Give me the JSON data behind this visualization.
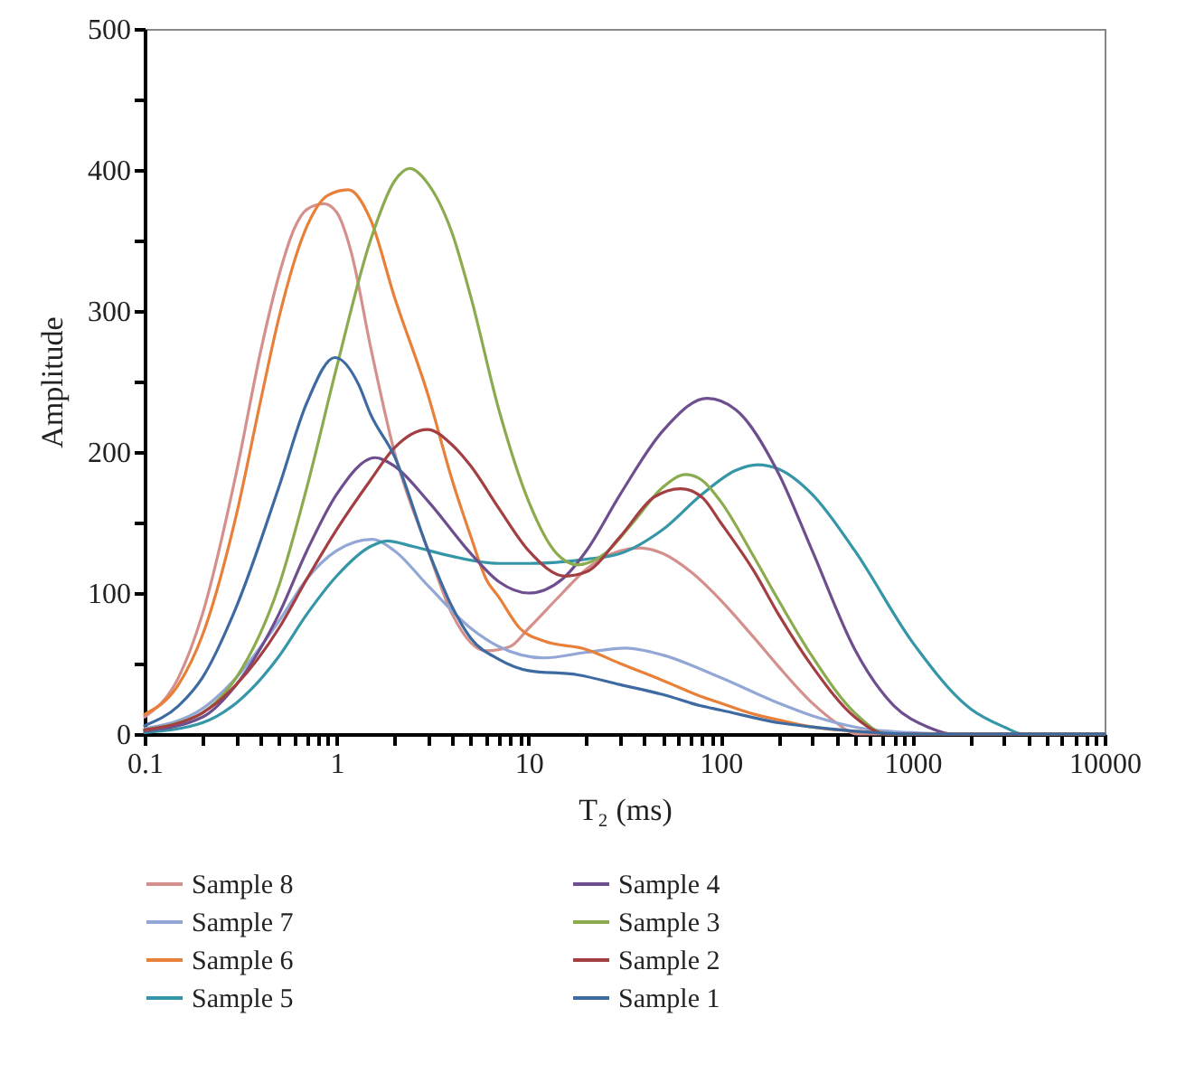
{
  "chart_data": {
    "type": "line",
    "xlabel": "T₂ (ms)",
    "ylabel": "Amplitude",
    "log": "x",
    "legend": "bottom",
    "grid": false,
    "xlim": [
      0.1,
      10000
    ],
    "ylim": [
      0,
      500
    ],
    "xticks": [
      0.1,
      {
        "value": 0.2,
        "label": null
      },
      {
        "value": 0.3,
        "label": null
      },
      {
        "value": 0.4,
        "label": null
      },
      {
        "value": 0.5,
        "label": null
      },
      {
        "value": 0.6,
        "label": null
      },
      {
        "value": 0.7,
        "label": null
      },
      {
        "value": 0.8,
        "label": null
      },
      {
        "value": 0.9,
        "label": null
      },
      1,
      {
        "value": 2,
        "label": null
      },
      {
        "value": 3,
        "label": null
      },
      {
        "value": 4,
        "label": null
      },
      {
        "value": 5,
        "label": null
      },
      {
        "value": 6,
        "label": null
      },
      {
        "value": 7,
        "label": null
      },
      {
        "value": 8,
        "label": null
      },
      {
        "value": 9,
        "label": null
      },
      10,
      {
        "value": 20,
        "label": null
      },
      {
        "value": 30,
        "label": null
      },
      {
        "value": 40,
        "label": null
      },
      {
        "value": 50,
        "label": null
      },
      {
        "value": 60,
        "label": null
      },
      {
        "value": 70,
        "label": null
      },
      {
        "value": 80,
        "label": null
      },
      {
        "value": 90,
        "label": null
      },
      100,
      {
        "value": 200,
        "label": null
      },
      {
        "value": 300,
        "label": null
      },
      {
        "value": 400,
        "label": null
      },
      {
        "value": 500,
        "label": null
      },
      {
        "value": 600,
        "label": null
      },
      {
        "value": 700,
        "label": null
      },
      {
        "value": 800,
        "label": null
      },
      {
        "value": 900,
        "label": null
      },
      1000,
      {
        "value": 2000,
        "label": null
      },
      {
        "value": 3000,
        "label": null
      },
      {
        "value": 4000,
        "label": null
      },
      {
        "value": 5000,
        "label": null
      },
      {
        "value": 6000,
        "label": null
      },
      {
        "value": 7000,
        "label": null
      },
      {
        "value": 8000,
        "label": null
      },
      {
        "value": 9000,
        "label": null
      },
      10000
    ],
    "yticks": [
      0,
      {
        "value": 50,
        "label": null
      },
      100,
      {
        "value": 150,
        "label": null
      },
      200,
      {
        "value": 250,
        "label": null
      },
      300,
      {
        "value": 350,
        "label": null
      },
      400,
      {
        "value": 450,
        "label": null
      },
      500
    ],
    "series": [
      {
        "name": "Sample 8",
        "color": "#d4908c",
        "x": [
          0.1,
          0.15,
          0.2,
          0.3,
          0.4,
          0.5,
          0.6,
          0.7,
          0.86,
          1,
          1.2,
          1.5,
          2,
          3,
          4,
          6,
          8,
          10,
          15,
          20,
          30,
          38,
          50,
          70,
          100,
          150,
          200,
          300,
          400,
          510,
          1000,
          10000
        ],
        "values": [
          12,
          40,
          85,
          185,
          270,
          325,
          358,
          372,
          376,
          370,
          340,
          275,
          200,
          130,
          85,
          59,
          62,
          75,
          100,
          117,
          130,
          132,
          128,
          115,
          95,
          68,
          48,
          22,
          8,
          0,
          0,
          0
        ]
      },
      {
        "name": "Sample 7",
        "color": "#92a7d5",
        "x": [
          0.1,
          0.2,
          0.3,
          0.5,
          0.7,
          1,
          1.53,
          2,
          3,
          5,
          7,
          12,
          20,
          32,
          50,
          100,
          200,
          300,
          500,
          1000,
          2000,
          10000
        ],
        "values": [
          4,
          18,
          40,
          80,
          110,
          130,
          138,
          130,
          105,
          75,
          62,
          54,
          58,
          61,
          56,
          40,
          22,
          13,
          5,
          1,
          0,
          0
        ]
      },
      {
        "name": "Sample 6",
        "color": "#e8803a",
        "x": [
          0.1,
          0.15,
          0.2,
          0.3,
          0.4,
          0.5,
          0.7,
          0.9,
          1.15,
          1.5,
          2,
          3,
          4,
          5,
          6,
          7,
          9,
          12,
          20,
          30,
          50,
          78,
          100,
          150,
          200,
          300,
          500,
          700
        ],
        "values": [
          14,
          35,
          70,
          155,
          235,
          295,
          360,
          382,
          386,
          365,
          310,
          240,
          180,
          140,
          110,
          97,
          75,
          66,
          60,
          50,
          38,
          27,
          22,
          14,
          10,
          5,
          2,
          1
        ]
      },
      {
        "name": "Sample 5",
        "color": "#3596a8",
        "x": [
          0.1,
          0.2,
          0.3,
          0.5,
          0.7,
          1,
          1.5,
          1.83,
          2.5,
          4,
          7,
          10,
          20,
          30,
          50,
          80,
          120,
          156,
          200,
          300,
          500,
          1000,
          2000,
          3000,
          3760,
          10000
        ],
        "values": [
          1,
          8,
          22,
          55,
          85,
          112,
          133,
          137,
          133,
          126,
          121,
          121,
          124,
          128,
          145,
          170,
          187,
          191,
          188,
          170,
          130,
          65,
          18,
          5,
          0,
          0
        ]
      },
      {
        "name": "Sample 4",
        "color": "#6e4e8e",
        "x": [
          0.1,
          0.2,
          0.3,
          0.5,
          0.7,
          1,
          1.59,
          2,
          3,
          5,
          7,
          10,
          15,
          20,
          30,
          50,
          85,
          120,
          200,
          300,
          500,
          800,
          1200,
          1620,
          10000
        ],
        "values": [
          2,
          12,
          35,
          85,
          130,
          170,
          196,
          190,
          165,
          128,
          108,
          100,
          110,
          130,
          170,
          215,
          238,
          230,
          185,
          130,
          60,
          20,
          5,
          0,
          0
        ]
      },
      {
        "name": "Sample 3",
        "color": "#8bab4f",
        "x": [
          0.1,
          0.15,
          0.2,
          0.3,
          0.5,
          0.7,
          1,
          1.5,
          2,
          2.4,
          3,
          4,
          5,
          7,
          10,
          14,
          18,
          25,
          35,
          50,
          66,
          80,
          100,
          150,
          200,
          300,
          500,
          740,
          10000
        ],
        "values": [
          3,
          8,
          15,
          40,
          105,
          175,
          260,
          350,
          392,
          401,
          390,
          355,
          310,
          230,
          165,
          128,
          120,
          128,
          150,
          175,
          184,
          180,
          165,
          125,
          95,
          55,
          15,
          0,
          0
        ]
      },
      {
        "name": "Sample 2",
        "color": "#a33e42",
        "x": [
          0.1,
          0.2,
          0.3,
          0.5,
          0.7,
          1,
          1.5,
          2,
          2.97,
          4,
          5,
          7,
          10,
          15.5,
          20,
          30,
          45,
          62,
          80,
          100,
          150,
          200,
          300,
          500,
          740,
          10000
        ],
        "values": [
          3,
          15,
          35,
          75,
          110,
          145,
          180,
          203,
          216,
          205,
          190,
          160,
          130,
          112,
          115,
          140,
          168,
          174,
          168,
          150,
          115,
          85,
          48,
          12,
          0,
          0
        ]
      },
      {
        "name": "Sample 1",
        "color": "#3e6aa2",
        "x": [
          0.1,
          0.15,
          0.2,
          0.3,
          0.5,
          0.7,
          0.98,
          1.3,
          1.5,
          2,
          3,
          4,
          5,
          7,
          10,
          18,
          30,
          50,
          79,
          100,
          200,
          300,
          500,
          1000,
          10000
        ],
        "values": [
          6,
          20,
          40,
          90,
          175,
          235,
          267,
          248,
          227,
          197,
          130,
          90,
          68,
          53,
          45,
          42,
          35,
          28,
          20,
          17,
          8,
          5,
          2,
          0,
          0
        ]
      }
    ]
  }
}
